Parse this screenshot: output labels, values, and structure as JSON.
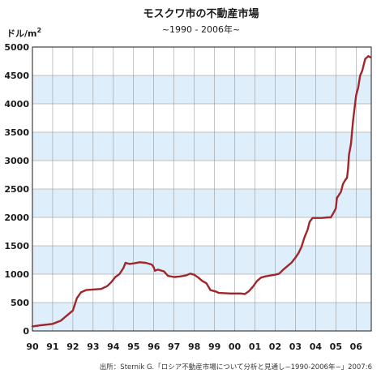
{
  "chart_data": {
    "type": "line",
    "title": "モスクワ市の不動産市場",
    "subtitle": "~1990 - 2006年~",
    "ylabel_base": "ドル/m",
    "ylabel_sup": "2",
    "source": "出所：Sternik G.「ロシア不動産市場について分析と見通し−1990-2006年−」2007:6",
    "ylim": [
      0,
      5000
    ],
    "xlim": [
      1990,
      2006.75
    ],
    "y_ticks": [
      "0",
      "500",
      "1000",
      "1500",
      "2000",
      "2500",
      "3000",
      "3500",
      "4000",
      "4500",
      "5000"
    ],
    "x_ticks": [
      "90",
      "91",
      "92",
      "93",
      "94",
      "95",
      "96",
      "97",
      "98",
      "99",
      "00",
      "01",
      "02",
      "03",
      "04",
      "05",
      "06"
    ],
    "grid": true,
    "colors": {
      "line": "#a0262a",
      "band": "#dfeefb",
      "plot_bg": "#ffffff",
      "grid": "#8a8a8a",
      "axis": "#1a1a1a"
    },
    "series": [
      {
        "x": [
          1990.0,
          1990.4,
          1991.0,
          1991.4,
          1991.7,
          1992.0,
          1992.2,
          1992.4,
          1992.65,
          1993.0,
          1993.4,
          1993.7,
          1993.9,
          1994.1,
          1994.3,
          1994.5,
          1994.6,
          1994.8,
          1995.0,
          1995.3,
          1995.6,
          1995.9,
          1996.0,
          1996.05,
          1996.2,
          1996.5,
          1996.6,
          1996.7,
          1997.0,
          1997.3,
          1997.6,
          1997.8,
          1998.0,
          1998.2,
          1998.4,
          1998.6,
          1998.8,
          1998.9,
          1999.1,
          1999.2,
          1999.5,
          1999.8,
          2000.0,
          2000.15,
          2000.3,
          2000.5,
          2000.7,
          2000.9,
          2001.1,
          2001.3,
          2001.5,
          2001.8,
          2002.0,
          2002.2,
          2002.4,
          2002.6,
          2002.8,
          2003.0,
          2003.15,
          2003.3,
          2003.45,
          2003.6,
          2003.7,
          2003.85,
          2004.0,
          2004.3,
          2004.6,
          2004.75,
          2004.9,
          2005.0,
          2005.05,
          2005.25,
          2005.35,
          2005.45,
          2005.55,
          2005.6,
          2005.65,
          2005.75,
          2005.85,
          2006.0,
          2006.1,
          2006.2,
          2006.3,
          2006.45,
          2006.6,
          2006.7
        ],
        "y": [
          80,
          100,
          125,
          180,
          270,
          360,
          580,
          680,
          720,
          730,
          740,
          790,
          860,
          950,
          1000,
          1110,
          1200,
          1180,
          1190,
          1210,
          1200,
          1170,
          1120,
          1060,
          1080,
          1050,
          1010,
          970,
          950,
          960,
          980,
          1010,
          990,
          940,
          880,
          840,
          720,
          710,
          690,
          670,
          665,
          660,
          660,
          660,
          660,
          650,
          700,
          780,
          880,
          940,
          960,
          980,
          990,
          1010,
          1080,
          1140,
          1200,
          1290,
          1370,
          1480,
          1650,
          1780,
          1920,
          1990,
          1990,
          1990,
          2000,
          2000,
          2090,
          2160,
          2340,
          2450,
          2590,
          2650,
          2700,
          2850,
          3100,
          3300,
          3700,
          4150,
          4280,
          4500,
          4580,
          4790,
          4840,
          4820
        ]
      }
    ]
  }
}
